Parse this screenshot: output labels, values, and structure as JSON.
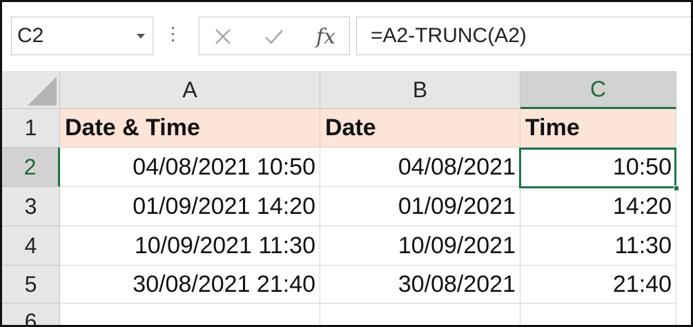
{
  "name_box": {
    "value": "C2"
  },
  "formula_bar": {
    "cancel_icon": "cancel-x-icon",
    "enter_icon": "check-icon",
    "fx_label": "fx",
    "formula": "=A2-TRUNC(A2)"
  },
  "columns": [
    "A",
    "B",
    "C"
  ],
  "rows": [
    "1",
    "2",
    "3",
    "4",
    "5",
    "6"
  ],
  "selected_column": "C",
  "selected_row": "2",
  "header_row": {
    "a": "Date & Time",
    "b": "Date",
    "c": "Time"
  },
  "data_rows": [
    {
      "a": "04/08/2021 10:50",
      "b": "04/08/2021",
      "c": "10:50"
    },
    {
      "a": "01/09/2021 14:20",
      "b": "01/09/2021",
      "c": "14:20"
    },
    {
      "a": "10/09/2021 11:30",
      "b": "10/09/2021",
      "c": "11:30"
    },
    {
      "a": "30/08/2021 21:40",
      "b": "30/08/2021",
      "c": "21:40"
    }
  ],
  "colors": {
    "header_fill": "#fce4d6",
    "selection": "#1f7244"
  }
}
